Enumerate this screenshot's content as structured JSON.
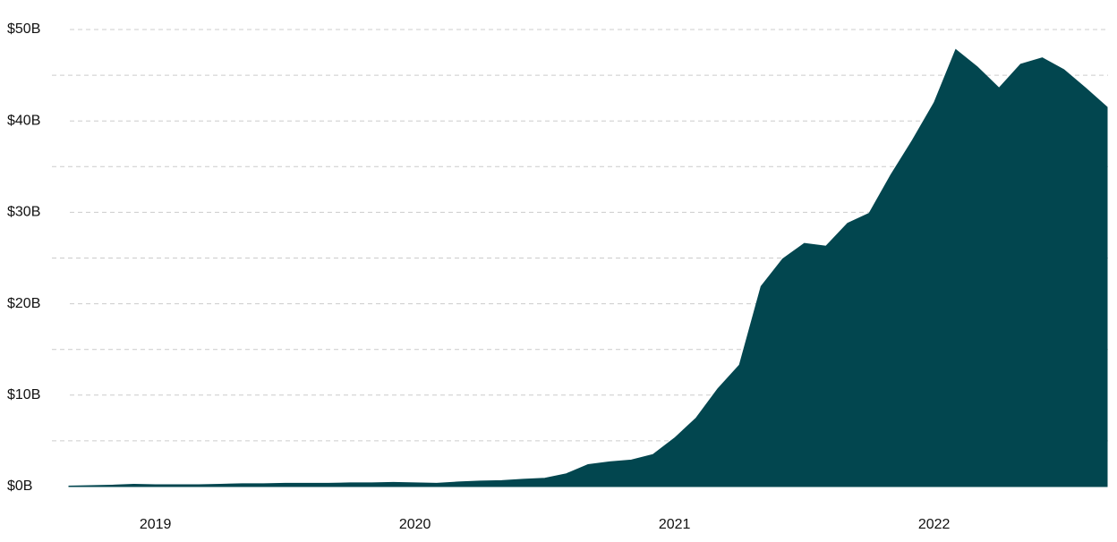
{
  "chart_data": {
    "type": "area",
    "color": "#02464f",
    "grid": true,
    "categories": [
      null,
      null,
      null,
      null,
      "2019",
      null,
      null,
      null,
      null,
      null,
      null,
      null,
      null,
      null,
      null,
      null,
      "2020",
      null,
      null,
      null,
      null,
      null,
      null,
      null,
      null,
      null,
      null,
      null,
      "2021",
      null,
      null,
      null,
      null,
      null,
      null,
      null,
      null,
      null,
      null,
      null,
      "2022",
      null,
      null,
      null,
      null,
      null,
      null,
      null,
      null
    ],
    "values": [
      0.05,
      0.1,
      0.15,
      0.25,
      0.2,
      0.2,
      0.2,
      0.25,
      0.3,
      0.3,
      0.35,
      0.35,
      0.35,
      0.4,
      0.4,
      0.45,
      0.4,
      0.35,
      0.5,
      0.6,
      0.65,
      0.8,
      0.9,
      1.4,
      2.4,
      2.7,
      2.9,
      3.5,
      5.3,
      7.5,
      10.7,
      13.3,
      21.9,
      24.9,
      26.6,
      26.3,
      28.8,
      29.9,
      34.1,
      37.9,
      42.0,
      47.8,
      45.9,
      43.6,
      46.2,
      46.9,
      45.6,
      43.6,
      41.5
    ],
    "ylim": [
      0,
      50
    ],
    "yticks": [
      {
        "value": 0,
        "label": "$0B"
      },
      {
        "value": 10,
        "label": "$10B"
      },
      {
        "value": 20,
        "label": "$20B"
      },
      {
        "value": 30,
        "label": "$30B"
      },
      {
        "value": 40,
        "label": "$40B"
      },
      {
        "value": 50,
        "label": "$50B"
      }
    ]
  }
}
